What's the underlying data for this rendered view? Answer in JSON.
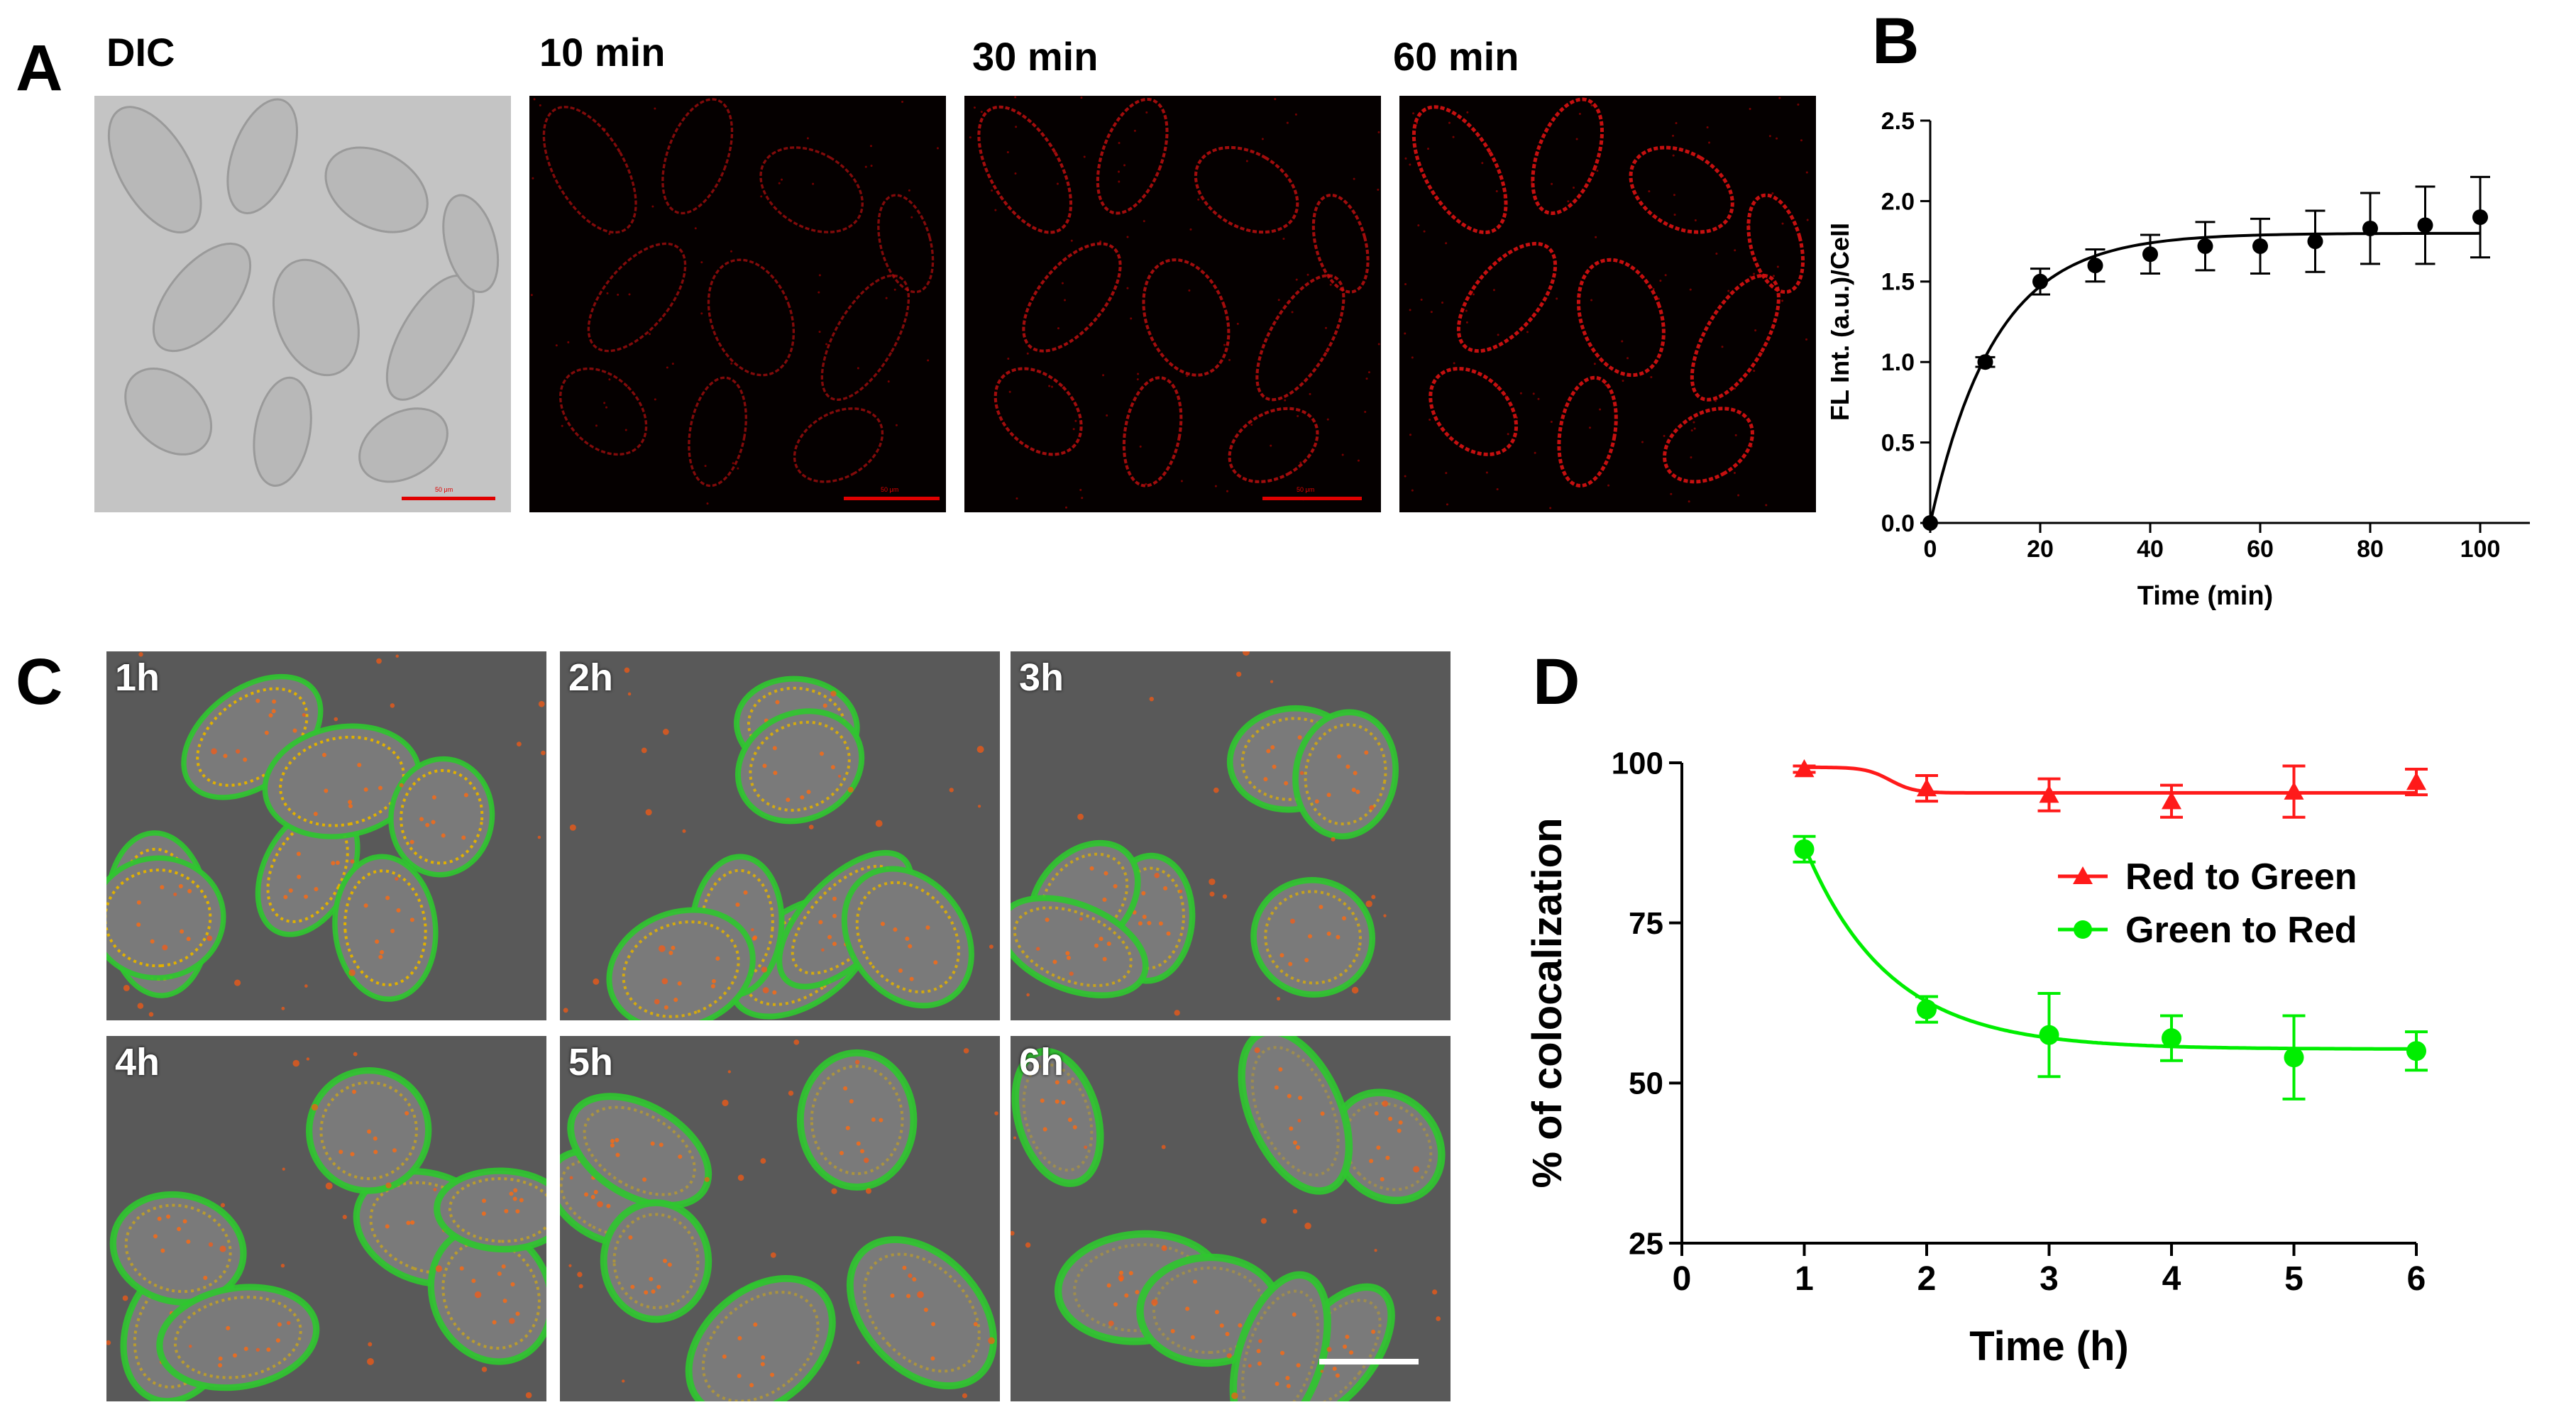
{
  "panels": {
    "a": {
      "letter": "A",
      "images": [
        {
          "label": "DIC",
          "type": "dic",
          "scale_label": "50 μm"
        },
        {
          "label": "10 min",
          "type": "red",
          "level": 0.45,
          "scale_label": "50 μm"
        },
        {
          "label": "30 min",
          "type": "red",
          "level": 0.7,
          "scale_label": "50 μm"
        },
        {
          "label": "60 min",
          "type": "red",
          "level": 1.0,
          "scale_label": ""
        }
      ]
    },
    "b": {
      "letter": "B"
    },
    "c": {
      "letter": "C",
      "images": [
        {
          "label": "1h"
        },
        {
          "label": "2h"
        },
        {
          "label": "3h"
        },
        {
          "label": "4h"
        },
        {
          "label": "5h"
        },
        {
          "label": "6h"
        }
      ]
    },
    "d": {
      "letter": "D"
    }
  },
  "colors": {
    "red_series": "#ff1a1a",
    "green_series": "#00ee00",
    "black_series": "#000000"
  },
  "chart_data": [
    {
      "type": "line",
      "panel": "B",
      "xlabel": "Time (min)",
      "ylabel": "FL Int. (a.u.)/Cell",
      "xlim": [
        0,
        100
      ],
      "ylim": [
        0,
        2.5
      ],
      "xticks": [
        0,
        20,
        40,
        60,
        80,
        100
      ],
      "yticks": [
        0.0,
        0.5,
        1.0,
        1.5,
        2.0,
        2.5
      ],
      "ytick_labels": [
        "0.0",
        "0.5",
        "1.0",
        "1.5",
        "2.0",
        "2.5"
      ],
      "grid": false,
      "series": [
        {
          "x": [
            0,
            10,
            20,
            30,
            40,
            50,
            60,
            70,
            80,
            90,
            100
          ],
          "y": [
            0.0,
            1.0,
            1.5,
            1.6,
            1.67,
            1.72,
            1.72,
            1.75,
            1.83,
            1.85,
            1.9
          ],
          "err": [
            0,
            0.03,
            0.08,
            0.1,
            0.12,
            0.15,
            0.17,
            0.19,
            0.22,
            0.24,
            0.25
          ],
          "fit": {
            "plateau": 1.8,
            "k": 0.085
          },
          "color": "#000000",
          "marker": "circle"
        }
      ]
    },
    {
      "type": "line",
      "panel": "D",
      "xlabel": "Time (h)",
      "ylabel": "% of colocalization",
      "xlim": [
        0,
        6
      ],
      "ylim": [
        25,
        100
      ],
      "xticks": [
        0,
        1,
        2,
        3,
        4,
        5,
        6
      ],
      "yticks": [
        25,
        50,
        75,
        100
      ],
      "legend": "center-right",
      "grid": false,
      "series": [
        {
          "name": "Red to Green",
          "x": [
            1,
            2,
            3,
            4,
            5,
            6
          ],
          "y": [
            99,
            96,
            95,
            94,
            95.5,
            97
          ],
          "err": [
            0.5,
            2,
            2.5,
            2.5,
            4,
            2
          ],
          "fit": {
            "type": "step",
            "high": 99.3,
            "low": 95.3,
            "x0": 1.7,
            "w": 0.1
          },
          "color": "#ff1a1a",
          "marker": "triangle"
        },
        {
          "name": "Green to Red",
          "x": [
            1,
            2,
            3,
            4,
            5,
            6
          ],
          "y": [
            86.5,
            61.5,
            57.5,
            57,
            54,
            55
          ],
          "err": [
            2,
            2,
            6.5,
            3.5,
            6.5,
            3
          ],
          "fit": {
            "type": "decay",
            "start": 87,
            "plateau": 55.3,
            "k": 1.45,
            "x0": 1
          },
          "color": "#00ee00",
          "marker": "circle"
        }
      ]
    }
  ]
}
